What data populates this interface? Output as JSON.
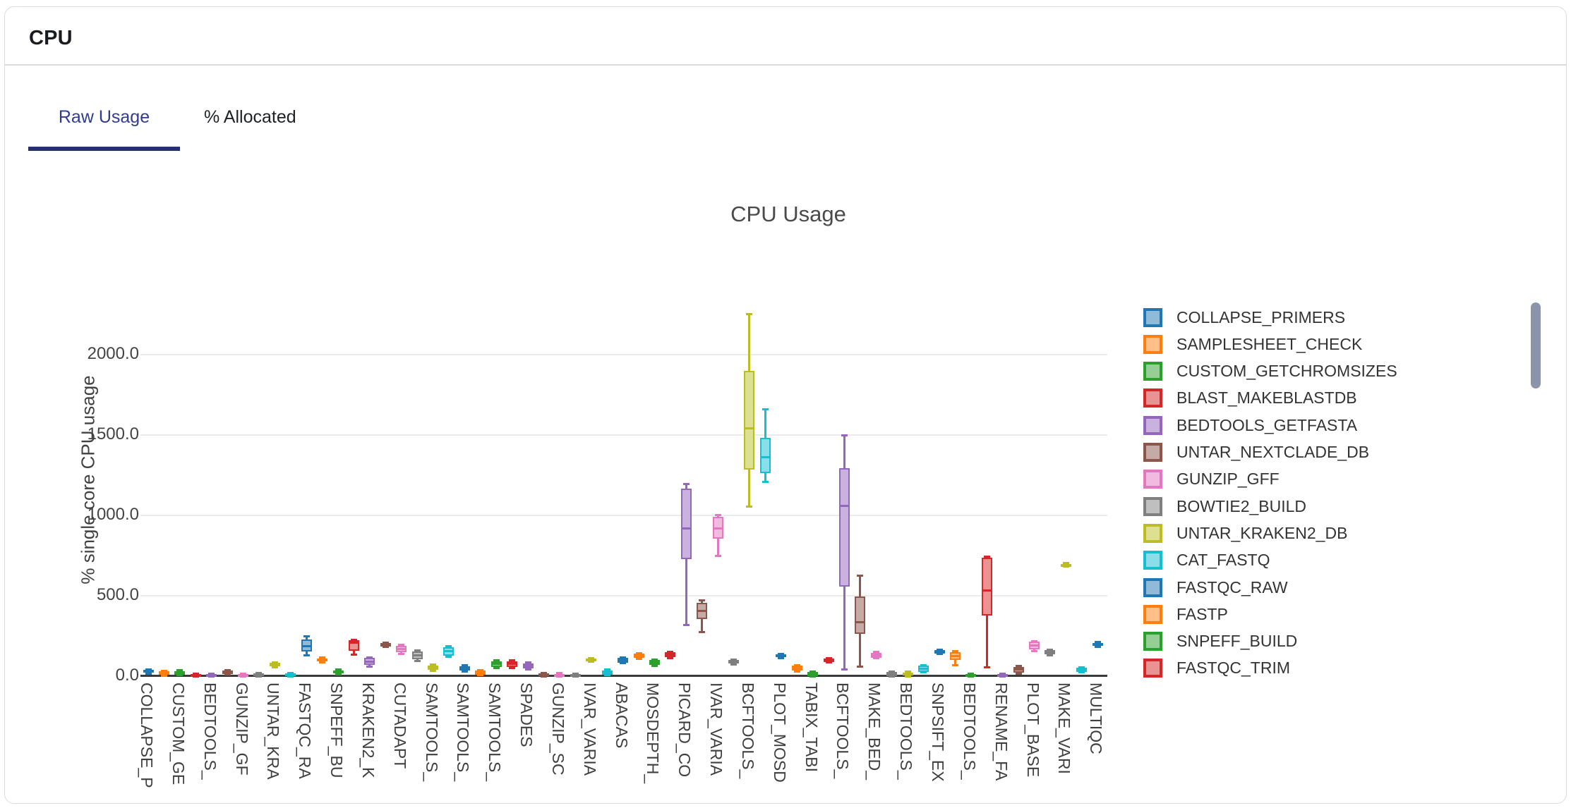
{
  "panel": {
    "title": "CPU"
  },
  "tabs": [
    {
      "label": "Raw Usage",
      "active": true
    },
    {
      "label": "% Allocated",
      "active": false
    }
  ],
  "accent_colors": {
    "active_tab_text": "#323c8e",
    "active_tab_underline": "#272f6d",
    "scrollbar_thumb": "#8b94aa"
  },
  "chart_data": {
    "type": "box",
    "title": "CPU Usage",
    "xlabel": "",
    "ylabel": "% single core CPU usage",
    "ylim": [
      0,
      2300
    ],
    "grid": true,
    "legend_position": "right",
    "yticks": [
      0,
      500,
      1000,
      1500,
      2000
    ],
    "ytick_labels": [
      "0.0",
      "500.0",
      "1000.0",
      "1500.0",
      "2000.0"
    ],
    "x_label_every": 2,
    "x_tick_labels": [
      "COLLAPSE_P",
      "CUSTOM_GE",
      "BEDTOOLS_",
      "GUNZIP_GF",
      "UNTAR_KRA",
      "FASTQC_RA",
      "SNPEFF_BU",
      "KRAKEN2_K",
      "CUTADAPT",
      "SAMTOOLS_",
      "SAMTOOLS_",
      "SAMTOOLS_",
      "SPADES",
      "GUNZIP_SC",
      "IVAR_VARIA",
      "ABACAS",
      "MOSDEPTH_",
      "PICARD_CO",
      "IVAR_VARIA",
      "BCFTOOLS_",
      "PLOT_MOSD",
      "TABIX_TABI",
      "BCFTOOLS_",
      "MAKE_BED_",
      "BEDTOOLS_",
      "SNPSIFT_EX",
      "BEDTOOLS_",
      "RENAME_FA",
      "PLOT_BASE",
      "MAKE_VARI",
      "MULTIQC"
    ],
    "palette": [
      {
        "line": "#1f77b4",
        "fill": "#8fbbd9"
      },
      {
        "line": "#ff7f0e",
        "fill": "#ffbf86"
      },
      {
        "line": "#2ca02c",
        "fill": "#95cf95"
      },
      {
        "line": "#d62728",
        "fill": "#ea9393"
      },
      {
        "line": "#9467bd",
        "fill": "#c9b3de"
      },
      {
        "line": "#8c564b",
        "fill": "#c5aaa5"
      },
      {
        "line": "#e377c2",
        "fill": "#f1bbe0"
      },
      {
        "line": "#7f7f7f",
        "fill": "#bfbfbf"
      },
      {
        "line": "#bcbd22",
        "fill": "#dde090"
      },
      {
        "line": "#17becf",
        "fill": "#8bdee7"
      }
    ],
    "boxes_note": "each box = [whisker_low, q1, median, q3, whisker_high] in % single-core CPU; colors cycle through palette by index",
    "boxes": [
      [
        15,
        20,
        28,
        38,
        42
      ],
      [
        4,
        9,
        18,
        30,
        34
      ],
      [
        5,
        10,
        18,
        32,
        37
      ],
      [
        0,
        1,
        6,
        13,
        15
      ],
      [
        0,
        1,
        6,
        13,
        15
      ],
      [
        9,
        14,
        24,
        34,
        38
      ],
      [
        0,
        2,
        7,
        13,
        16
      ],
      [
        0,
        2,
        8,
        16,
        18
      ],
      [
        57,
        62,
        72,
        83,
        87
      ],
      [
        0,
        2,
        9,
        17,
        20
      ],
      [
        130,
        152,
        188,
        228,
        246
      ],
      [
        84,
        91,
        100,
        110,
        115
      ],
      [
        11,
        16,
        25,
        36,
        40
      ],
      [
        134,
        158,
        210,
        222,
        228
      ],
      [
        58,
        70,
        92,
        113,
        118
      ],
      [
        180,
        185,
        195,
        206,
        210
      ],
      [
        139,
        148,
        170,
        190,
        196
      ],
      [
        94,
        104,
        128,
        152,
        158
      ],
      [
        34,
        40,
        52,
        67,
        72
      ],
      [
        119,
        128,
        155,
        182,
        188
      ],
      [
        29,
        35,
        48,
        63,
        68
      ],
      [
        5,
        9,
        20,
        33,
        38
      ],
      [
        49,
        56,
        75,
        93,
        99
      ],
      [
        51,
        58,
        75,
        93,
        99
      ],
      [
        41,
        47,
        63,
        80,
        85
      ],
      [
        0,
        2,
        9,
        18,
        21
      ],
      [
        0,
        2,
        8,
        15,
        18
      ],
      [
        0,
        1,
        7,
        13,
        16
      ],
      [
        92,
        96,
        102,
        109,
        113
      ],
      [
        5,
        10,
        22,
        37,
        42
      ],
      [
        79,
        85,
        98,
        112,
        117
      ],
      [
        108,
        114,
        127,
        139,
        144
      ],
      [
        64,
        71,
        85,
        99,
        104
      ],
      [
        111,
        118,
        133,
        148,
        153
      ],
      [
        316,
        728,
        920,
        1167,
        1193
      ],
      [
        272,
        355,
        404,
        456,
        470
      ],
      [
        750,
        855,
        917,
        991,
        1002
      ],
      [
        74,
        80,
        90,
        100,
        105
      ],
      [
        1057,
        1285,
        1540,
        1899,
        2253
      ],
      [
        1210,
        1263,
        1360,
        1482,
        1658
      ],
      [
        114,
        118,
        127,
        136,
        140
      ],
      [
        30,
        36,
        50,
        65,
        70
      ],
      [
        0,
        2,
        12,
        25,
        30
      ],
      [
        84,
        88,
        99,
        109,
        114
      ],
      [
        40,
        557,
        1060,
        1294,
        1496
      ],
      [
        61,
        263,
        335,
        496,
        627
      ],
      [
        110,
        115,
        130,
        144,
        150
      ],
      [
        0,
        2,
        12,
        25,
        28
      ],
      [
        0,
        3,
        13,
        24,
        28
      ],
      [
        22,
        28,
        45,
        64,
        70
      ],
      [
        136,
        141,
        151,
        161,
        166
      ],
      [
        70,
        100,
        125,
        148,
        155
      ],
      [
        0,
        1,
        7,
        14,
        17
      ],
      [
        57,
        377,
        531,
        736,
        742
      ],
      [
        0,
        1,
        7,
        14,
        17
      ],
      [
        15,
        22,
        40,
        58,
        63
      ],
      [
        155,
        165,
        190,
        213,
        218
      ],
      [
        130,
        137,
        150,
        161,
        166
      ],
      [
        680,
        685,
        690,
        697,
        702
      ],
      [
        22,
        28,
        40,
        52,
        57
      ],
      [
        182,
        188,
        197,
        208,
        213
      ]
    ],
    "legend": [
      {
        "label": "COLLAPSE_PRIMERS",
        "line": "#1f77b4",
        "fill": "#8fbbd9"
      },
      {
        "label": "SAMPLESHEET_CHECK",
        "line": "#ff7f0e",
        "fill": "#ffbf86"
      },
      {
        "label": "CUSTOM_GETCHROMSIZES",
        "line": "#2ca02c",
        "fill": "#95cf95"
      },
      {
        "label": "BLAST_MAKEBLASTDB",
        "line": "#d62728",
        "fill": "#ea9393"
      },
      {
        "label": "BEDTOOLS_GETFASTA",
        "line": "#9467bd",
        "fill": "#c9b3de"
      },
      {
        "label": "UNTAR_NEXTCLADE_DB",
        "line": "#8c564b",
        "fill": "#c5aaa5"
      },
      {
        "label": "GUNZIP_GFF",
        "line": "#e377c2",
        "fill": "#f1bbe0"
      },
      {
        "label": "BOWTIE2_BUILD",
        "line": "#7f7f7f",
        "fill": "#bfbfbf"
      },
      {
        "label": "UNTAR_KRAKEN2_DB",
        "line": "#bcbd22",
        "fill": "#dde090"
      },
      {
        "label": "CAT_FASTQ",
        "line": "#17becf",
        "fill": "#8bdee7"
      },
      {
        "label": "FASTQC_RAW",
        "line": "#1f77b4",
        "fill": "#8fbbd9"
      },
      {
        "label": "FASTP",
        "line": "#ff7f0e",
        "fill": "#ffbf86"
      },
      {
        "label": "SNPEFF_BUILD",
        "line": "#2ca02c",
        "fill": "#95cf95"
      },
      {
        "label": "FASTQC_TRIM",
        "line": "#d62728",
        "fill": "#ea9393"
      }
    ]
  }
}
